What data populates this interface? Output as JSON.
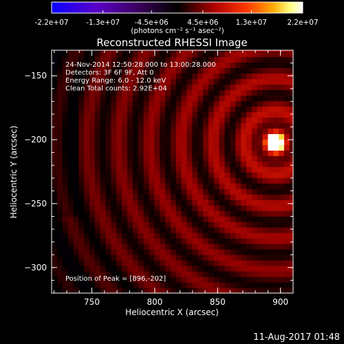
{
  "colorbar": {
    "ticks": [
      "-2.2e+07",
      "-1.3e+07",
      "-4.5e+06",
      "4.5e+06",
      "1.3e+07",
      "2.2e+07"
    ],
    "unit_label": "(photons cm⁻² s⁻¹ asec⁻²)",
    "range": [
      -22000000,
      22000000
    ]
  },
  "chart_data": {
    "type": "heatmap",
    "title": "Reconstructed RHESSI Image",
    "xlabel": "Heliocentric X (arcsec)",
    "ylabel": "Heliocentric Y (arcsec)",
    "xlim": [
      718,
      910
    ],
    "ylim": [
      -320,
      -130
    ],
    "xticks": [
      750,
      800,
      850,
      900
    ],
    "yticks": [
      -150,
      -200,
      -250,
      -300
    ],
    "colormap": "black-red-yellow-white (negative: purple-blue)",
    "peak": [
      896,
      -202
    ],
    "info_lines": [
      "24-Nov-2014 12:50:28.000 to 13:00:28.000",
      "Detectors: 3F 6F 9F, Att 0",
      "Energy Range: 6.0 - 12.0 keV",
      "Clean    Total counts: 2.92E+04"
    ],
    "peak_text": "Position of Peak = [896,-202]"
  },
  "footer_date": "11-Aug-2017 01:48"
}
